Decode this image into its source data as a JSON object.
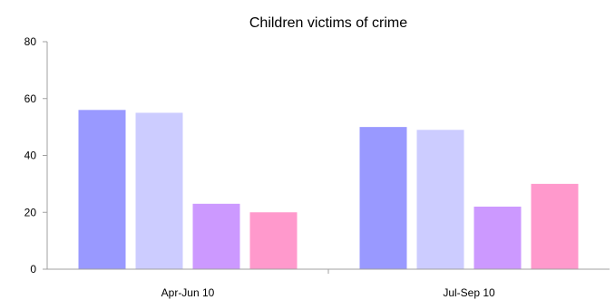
{
  "chart_data": {
    "type": "bar",
    "title": "Children victims of crime",
    "xlabel": "",
    "ylabel": "",
    "categories": [
      "Apr-Jun 10",
      "Jul-Sep 10"
    ],
    "series": [
      {
        "values": [
          56,
          50
        ],
        "color": "#9999ff"
      },
      {
        "values": [
          55,
          49
        ],
        "color": "#ccccff"
      },
      {
        "values": [
          23,
          22
        ],
        "color": "#cc99ff"
      },
      {
        "values": [
          20,
          30
        ],
        "color": "#ff99cc"
      }
    ],
    "ylim": [
      0,
      80
    ],
    "yticks": [
      0,
      20,
      40,
      60,
      80
    ],
    "grid": false,
    "legend": "none"
  }
}
